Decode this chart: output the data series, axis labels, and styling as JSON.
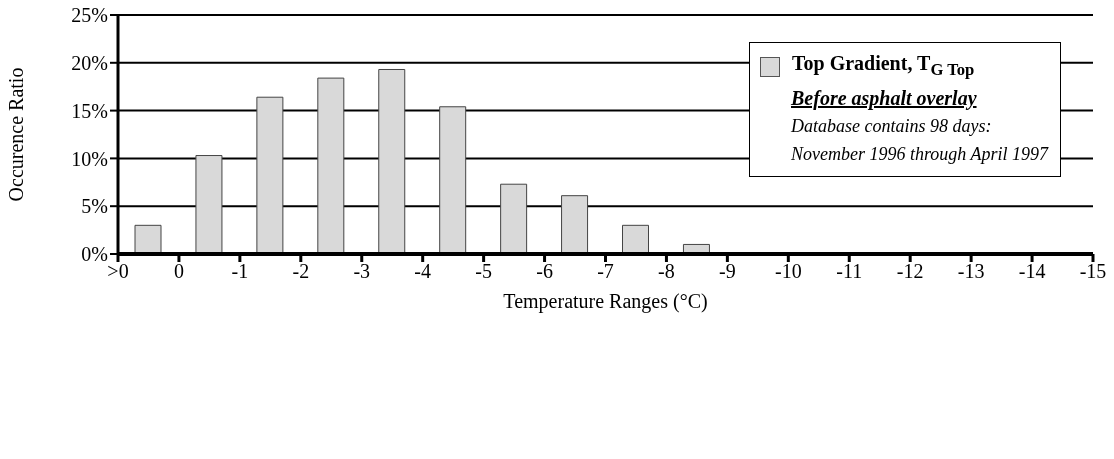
{
  "chart_data": {
    "type": "histogram",
    "xlabel": "Temperature Ranges  (°C)",
    "ylabel": "Occurence Ratio",
    "bins": [
      1,
      0,
      -1,
      -2,
      -3,
      -4,
      -5,
      -6,
      -7,
      -8,
      -9,
      -10,
      -11,
      -12,
      -13,
      -14,
      -15
    ],
    "series": [
      {
        "name": "Top Gradient, T$_{G Top}$",
        "color": "#d9d9d9",
        "values": [
          3.0,
          10.3,
          16.4,
          18.4,
          19.3,
          15.4,
          7.3,
          6.1,
          3.0,
          1.0,
          0,
          0,
          0,
          0,
          0,
          0
        ]
      }
    ],
    "xlim": [
      1,
      -15
    ],
    "xticks": [
      {
        "value": 1,
        "label": ">0"
      },
      0,
      -1,
      -2,
      -3,
      -4,
      -5,
      -6,
      -7,
      -8,
      -9,
      -10,
      -11,
      -12,
      -13,
      -14,
      -15
    ],
    "ylim": [
      0,
      25
    ],
    "yticks": [
      {
        "value": 0,
        "label": "0%"
      },
      {
        "value": 5,
        "label": "5%"
      },
      {
        "value": 10,
        "label": "10%"
      },
      {
        "value": 15,
        "label": "15%"
      },
      {
        "value": 20,
        "label": "20%"
      },
      {
        "value": 25,
        "label": "25%"
      }
    ],
    "grid": "y",
    "legend": "top right",
    "annotations": [
      "Before asphalt overlay",
      "Database contains 98 days:",
      "November 1996 through April 1997"
    ]
  }
}
